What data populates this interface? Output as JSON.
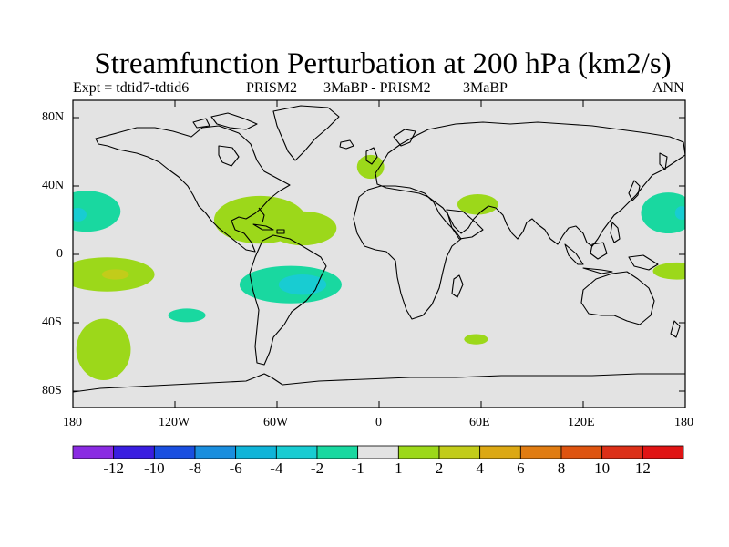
{
  "title": "Streamfunction Perturbation at 200 hPa (km2/s)",
  "subtitle": {
    "left": "Expt = tdtid7-tdtid6",
    "center_a": "PRISM2",
    "center_b": "3MaBP - PRISM2",
    "center_c": "3MaBP",
    "right": "ANN"
  },
  "axes": {
    "lat_labels": [
      "80N",
      "40N",
      "0",
      "40S",
      "80S"
    ],
    "lon_labels": [
      "180",
      "120W",
      "60W",
      "0",
      "60E",
      "120E",
      "180"
    ]
  },
  "colorbar": {
    "labels": [
      "-12",
      "-10",
      "-8",
      "-6",
      "-4",
      "-2",
      "-1",
      "1",
      "2",
      "4",
      "6",
      "8",
      "10",
      "12"
    ],
    "colors": [
      "#8a2be2",
      "#3a1ee0",
      "#1a4fe0",
      "#1a8ede",
      "#10b4d8",
      "#18ccd2",
      "#19d8a0",
      "#e3e3e3",
      "#9cd81a",
      "#c2cc1a",
      "#dca814",
      "#e07c12",
      "#de5410",
      "#dc3018",
      "#e01414"
    ]
  },
  "map": {
    "background_color": "#e3e3e3",
    "anomalies": [
      {
        "name": "north-atlantic-positive",
        "lon": -5,
        "lat": 51,
        "rlon": 8,
        "rlat": 7,
        "value": 2,
        "color": "#9cd81a"
      },
      {
        "name": "central-america-positive",
        "lon": -70,
        "lat": 20,
        "rlon": 27,
        "rlat": 14,
        "value": 2,
        "color": "#9cd81a"
      },
      {
        "name": "caribbean-atlantic-positive",
        "lon": -45,
        "lat": 15,
        "rlon": 20,
        "rlat": 10,
        "value": 2,
        "color": "#9cd81a"
      },
      {
        "name": "arabia-positive",
        "lon": 58,
        "lat": 29,
        "rlon": 12,
        "rlat": 6,
        "value": 2,
        "color": "#9cd81a"
      },
      {
        "name": "west-pacific-positive",
        "lon": 175,
        "lat": -10,
        "rlon": 14,
        "rlat": 5,
        "value": 2,
        "color": "#9cd81a"
      },
      {
        "name": "south-indian-positive",
        "lon": 57,
        "lat": -50,
        "rlon": 7,
        "rlat": 3,
        "value": 2,
        "color": "#9cd81a"
      },
      {
        "name": "east-pacific-positive",
        "lon": -160,
        "lat": -12,
        "rlon": 28,
        "rlat": 10,
        "value": 2,
        "color": "#9cd81a"
      },
      {
        "name": "south-pacific-positive",
        "lon": -162,
        "lat": -56,
        "rlon": 16,
        "rlat": 18,
        "value": 2,
        "color": "#9cd81a"
      },
      {
        "name": "east-pacific-core",
        "lon": -155,
        "lat": -12,
        "rlon": 8,
        "rlat": 3,
        "value": 4,
        "color": "#c2cc1a"
      },
      {
        "name": "south-america-negative",
        "lon": -52,
        "lat": -18,
        "rlon": 30,
        "rlat": 11,
        "value": -1,
        "color": "#19d8a0"
      },
      {
        "name": "south-america-negative-core",
        "lon": -45,
        "lat": -18,
        "rlon": 14,
        "rlat": 6,
        "value": -2,
        "color": "#18ccd2"
      },
      {
        "name": "west-pacific-north-negative",
        "lon": -172,
        "lat": 25,
        "rlon": 20,
        "rlat": 12,
        "value": -1,
        "color": "#19d8a0"
      },
      {
        "name": "west-pacific-north-negative-core",
        "lon": -177,
        "lat": 23,
        "rlon": 5,
        "rlat": 4,
        "value": -2,
        "color": "#18ccd2"
      },
      {
        "name": "east-pacific-east-negative",
        "lon": 170,
        "lat": 24,
        "rlon": 16,
        "rlat": 12,
        "value": -1,
        "color": "#19d8a0"
      },
      {
        "name": "east-pacific-east-negative-core",
        "lon": 178,
        "lat": 24,
        "rlon": 4,
        "rlat": 4,
        "value": -2,
        "color": "#18ccd2"
      },
      {
        "name": "south-pacific-small-negative",
        "lon": -113,
        "lat": -36,
        "rlon": 11,
        "rlat": 4,
        "value": -1,
        "color": "#19d8a0"
      }
    ]
  }
}
